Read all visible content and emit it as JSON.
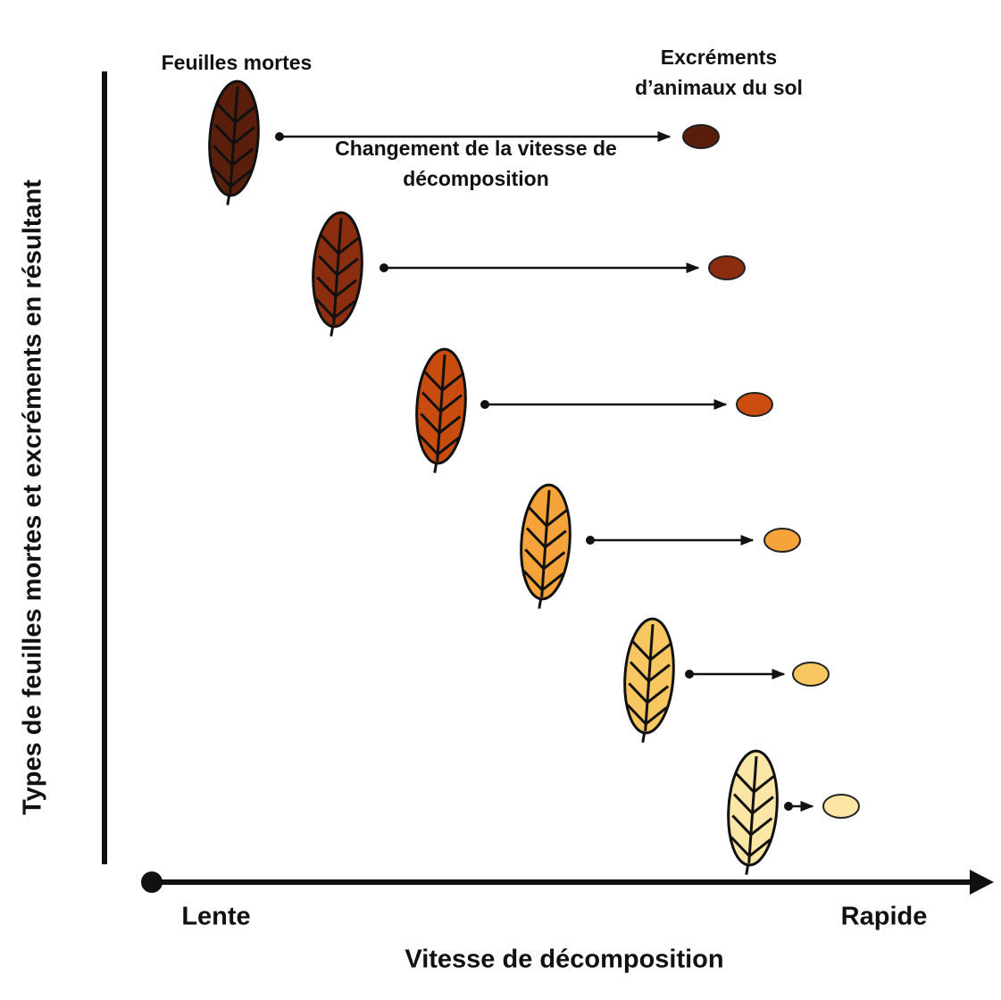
{
  "labels": {
    "leaves": "Feuilles mortes",
    "droppings": [
      "Excréments",
      "d’animaux du sol"
    ],
    "change": [
      "Changement de la vitesse de",
      "décomposition"
    ],
    "y_axis": "Types de feuilles mortes et excréments en résultant",
    "x_axis": "Vitesse de décomposition",
    "x_start": "Lente",
    "x_end": "Rapide"
  }
}
